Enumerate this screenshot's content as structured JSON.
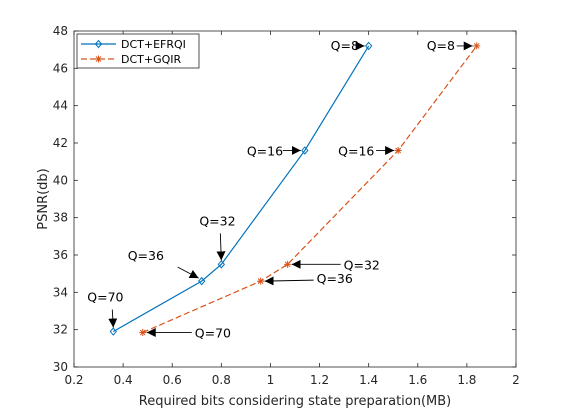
{
  "chart_data": {
    "type": "line",
    "xlabel": "Required bits considering state preparation(MB)",
    "ylabel": "PSNR(db)",
    "xlim": [
      0.2,
      2
    ],
    "ylim": [
      30,
      48
    ],
    "xticks": [
      0.2,
      0.4,
      0.6,
      0.8,
      1,
      1.2,
      1.4,
      1.6,
      1.8,
      2
    ],
    "xtick_labels": [
      "0.2",
      "0.4",
      "0.6",
      "0.8",
      "1",
      "1.2",
      "1.4",
      "1.6",
      "1.8",
      "2"
    ],
    "yticks": [
      30,
      32,
      34,
      36,
      38,
      40,
      42,
      44,
      46,
      48
    ],
    "ytick_labels": [
      "30",
      "32",
      "34",
      "36",
      "38",
      "40",
      "42",
      "44",
      "46",
      "48"
    ],
    "grid": false,
    "legend_position": "top-left",
    "series": [
      {
        "name": "DCT+EFRQI",
        "color": "#0072BD",
        "line_style": "solid",
        "marker": "diamond",
        "x": [
          0.36,
          0.72,
          0.8,
          1.14,
          1.4
        ],
        "y": [
          31.9,
          34.6,
          35.5,
          41.6,
          47.2
        ]
      },
      {
        "name": "DCT+GQIR",
        "color": "#D95319",
        "line_style": "dashed",
        "marker": "asterisk",
        "x": [
          0.48,
          0.96,
          1.07,
          1.52,
          1.84
        ],
        "y": [
          31.85,
          34.6,
          35.5,
          41.6,
          47.2
        ]
      }
    ],
    "annotations": [
      {
        "text": "Q=8",
        "x": 1.4,
        "y": 47.2
      },
      {
        "text": "Q=8",
        "x": 1.84,
        "y": 47.2
      },
      {
        "text": "Q=16",
        "x": 1.14,
        "y": 41.6
      },
      {
        "text": "Q=16",
        "x": 1.52,
        "y": 41.6
      },
      {
        "text": "Q=32",
        "x": 0.8,
        "y": 35.5
      },
      {
        "text": "Q=32",
        "x": 1.07,
        "y": 35.5
      },
      {
        "text": "Q=36",
        "x": 0.72,
        "y": 34.6
      },
      {
        "text": "Q=36",
        "x": 0.96,
        "y": 34.6
      },
      {
        "text": "Q=70",
        "x": 0.36,
        "y": 31.9
      },
      {
        "text": "Q=70",
        "x": 0.48,
        "y": 31.85
      }
    ]
  }
}
